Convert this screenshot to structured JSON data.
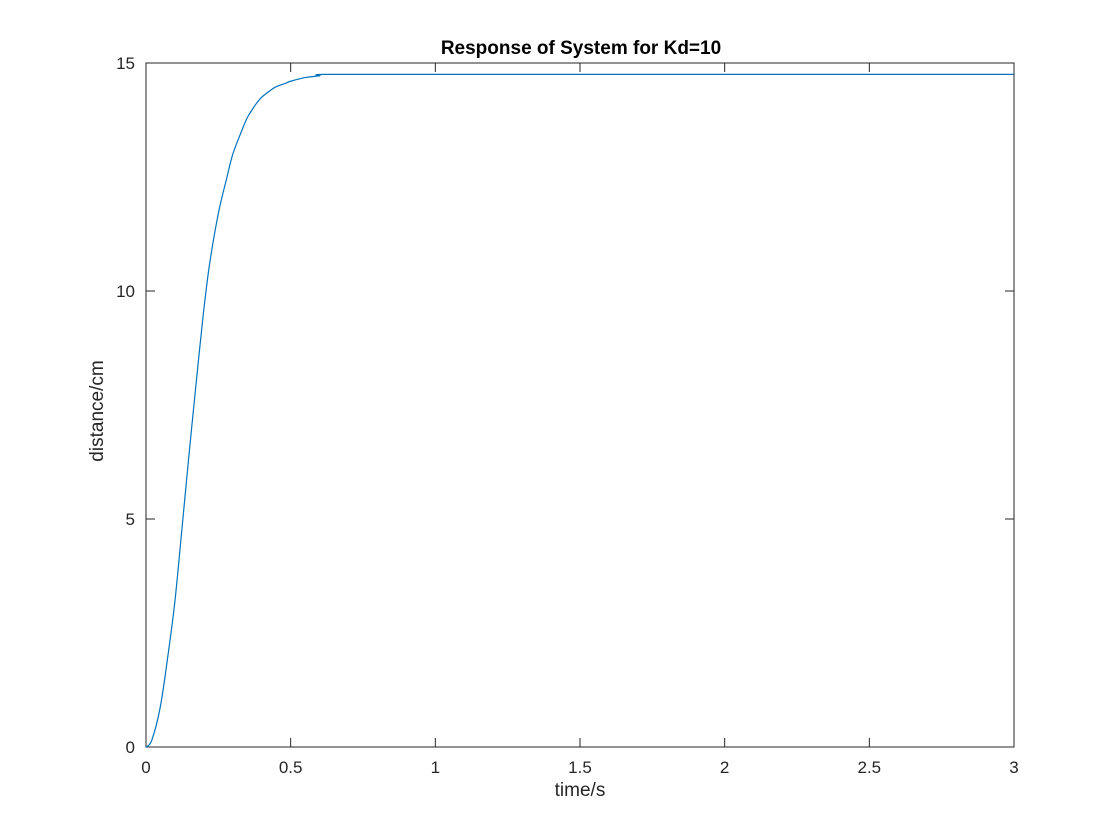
{
  "chart_data": {
    "type": "line",
    "title": "Response of System for Kd=10",
    "xlabel": "time/s",
    "ylabel": "distance/cm",
    "xlim": [
      0,
      3
    ],
    "ylim": [
      0,
      15
    ],
    "xticks": [
      0,
      0.5,
      1,
      1.5,
      2,
      2.5,
      3
    ],
    "xtick_labels": [
      "0",
      "0.5",
      "1",
      "1.5",
      "2",
      "2.5",
      "3"
    ],
    "yticks": [
      0,
      5,
      10,
      15
    ],
    "ytick_labels": [
      "0",
      "5",
      "10",
      "15"
    ],
    "grid": false,
    "legend": "none",
    "colors": {
      "line": "#0072BD",
      "axes": "#262626",
      "background": "#ffffff"
    },
    "series": [
      {
        "x": [
          0,
          0.02,
          0.05,
          0.08,
          0.1,
          0.12,
          0.15,
          0.18,
          0.2,
          0.22,
          0.25,
          0.28,
          0.3,
          0.33,
          0.35,
          0.38,
          0.4,
          0.43,
          0.45,
          0.48,
          0.5,
          0.55,
          0.6,
          0.62,
          1,
          1.5,
          2,
          2.5,
          3
        ],
        "y": [
          0,
          0.15,
          0.9,
          2.2,
          3.2,
          4.5,
          6.5,
          8.4,
          9.6,
          10.6,
          11.7,
          12.5,
          13.0,
          13.5,
          13.8,
          14.1,
          14.25,
          14.4,
          14.48,
          14.55,
          14.6,
          14.68,
          14.72,
          14.75,
          14.75,
          14.75,
          14.75,
          14.75,
          14.75
        ]
      }
    ]
  }
}
